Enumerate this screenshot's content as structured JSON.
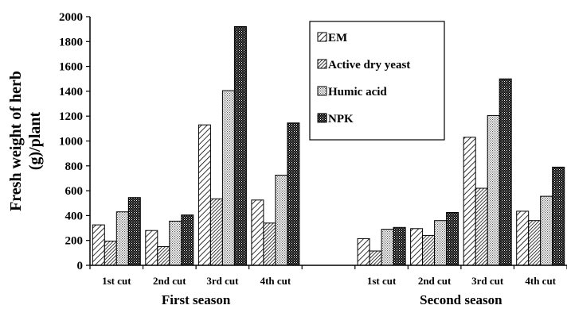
{
  "chart_data": {
    "type": "bar",
    "ylabel": [
      "Fresh weight of herb",
      "(g)/plant"
    ],
    "ylim": [
      0,
      2000
    ],
    "yticks": [
      0,
      200,
      400,
      600,
      800,
      1000,
      1200,
      1400,
      1600,
      1800,
      2000
    ],
    "groups": [
      {
        "name": "First season",
        "categories": [
          "1st cut",
          "2nd cut",
          "3rd cut",
          "4th cut"
        ]
      },
      {
        "name": "Second season",
        "categories": [
          "1st cut",
          "2nd cut",
          "3rd cut",
          "4th cut"
        ]
      }
    ],
    "series": [
      {
        "name": "EM",
        "pattern": "diag-light",
        "values": [
          325,
          280,
          1130,
          525,
          215,
          295,
          1030,
          435
        ]
      },
      {
        "name": "Active dry yeast",
        "pattern": "diag-dense",
        "values": [
          195,
          150,
          535,
          340,
          115,
          240,
          620,
          360
        ]
      },
      {
        "name": "Humic acid",
        "pattern": "dots-light",
        "values": [
          430,
          355,
          1405,
          725,
          290,
          360,
          1205,
          555
        ]
      },
      {
        "name": "NPK",
        "pattern": "dots-dark",
        "values": [
          545,
          405,
          1920,
          1145,
          305,
          425,
          1500,
          790
        ]
      }
    ],
    "legend_position": "top-right",
    "grid": false
  }
}
